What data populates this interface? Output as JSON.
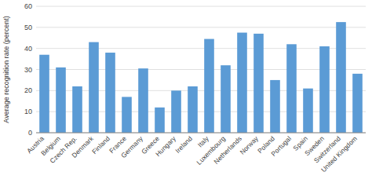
{
  "chart_data": {
    "type": "bar",
    "categories": [
      "Austria",
      "Belgium",
      "Czech Rep.",
      "Denmark",
      "Finland",
      "France",
      "Germany",
      "Greece",
      "Hungary",
      "Ireland",
      "Italy",
      "Luxembourg",
      "Netherlands",
      "Norway",
      "Poland",
      "Portugal",
      "Spain",
      "Sweden",
      "Switzerland",
      "United Kingdom"
    ],
    "values": [
      37,
      31,
      22,
      43,
      38,
      17,
      30.5,
      12,
      20,
      22,
      44.5,
      32,
      47.5,
      47,
      25,
      42,
      21,
      41,
      52.5,
      28
    ],
    "color": "#5b9bd5",
    "ylabel": "Average recognition rate (percent)",
    "ylim": [
      0,
      60
    ],
    "yticks": [
      0,
      10,
      20,
      30,
      40,
      50,
      60
    ],
    "grid": true
  }
}
